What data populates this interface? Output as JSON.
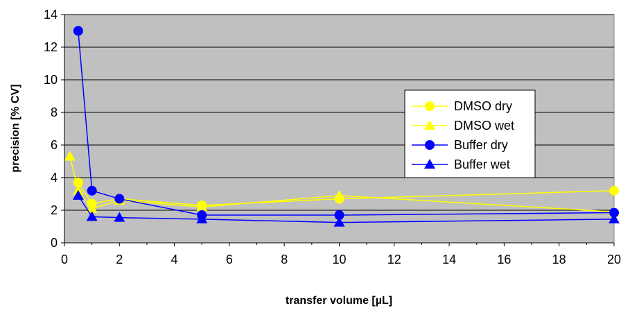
{
  "chart_data": {
    "type": "line",
    "title": "",
    "xlabel": "transfer volume [µL]",
    "ylabel": "precision [% CV]",
    "xlim": [
      0,
      20
    ],
    "ylim": [
      0,
      14
    ],
    "x_ticks": [
      0,
      2,
      4,
      6,
      8,
      10,
      12,
      14,
      16,
      18,
      20
    ],
    "y_ticks": [
      0,
      2,
      4,
      6,
      8,
      10,
      12,
      14
    ],
    "grid": "horizontal",
    "plot_background": "#c0c0c0",
    "legend_position": "right",
    "series": [
      {
        "name": "DMSO dry",
        "color": "#ffff00",
        "marker": "circle",
        "points": [
          [
            0.5,
            3.7
          ],
          [
            1,
            2.4
          ],
          [
            2,
            2.7
          ],
          [
            5,
            2.3
          ],
          [
            10,
            2.7
          ],
          [
            20,
            3.2
          ]
        ]
      },
      {
        "name": "DMSO wet",
        "color": "#ffff00",
        "marker": "triangle",
        "points": [
          [
            0.2,
            5.3
          ],
          [
            0.5,
            3.2
          ],
          [
            1,
            2.1
          ],
          [
            2,
            2.6
          ],
          [
            5,
            2.2
          ],
          [
            10,
            2.9
          ],
          [
            20,
            1.9
          ]
        ]
      },
      {
        "name": "Buffer dry",
        "color": "#0000ff",
        "marker": "circle",
        "points": [
          [
            0.5,
            13.0
          ],
          [
            1,
            3.2
          ],
          [
            2,
            2.7
          ],
          [
            5,
            1.7
          ],
          [
            10,
            1.7
          ],
          [
            20,
            1.85
          ]
        ]
      },
      {
        "name": "Buffer wet",
        "color": "#0000ff",
        "marker": "triangle",
        "points": [
          [
            0.5,
            2.9
          ],
          [
            1,
            1.6
          ],
          [
            2,
            1.55
          ],
          [
            5,
            1.45
          ],
          [
            10,
            1.25
          ],
          [
            20,
            1.45
          ]
        ]
      }
    ]
  }
}
